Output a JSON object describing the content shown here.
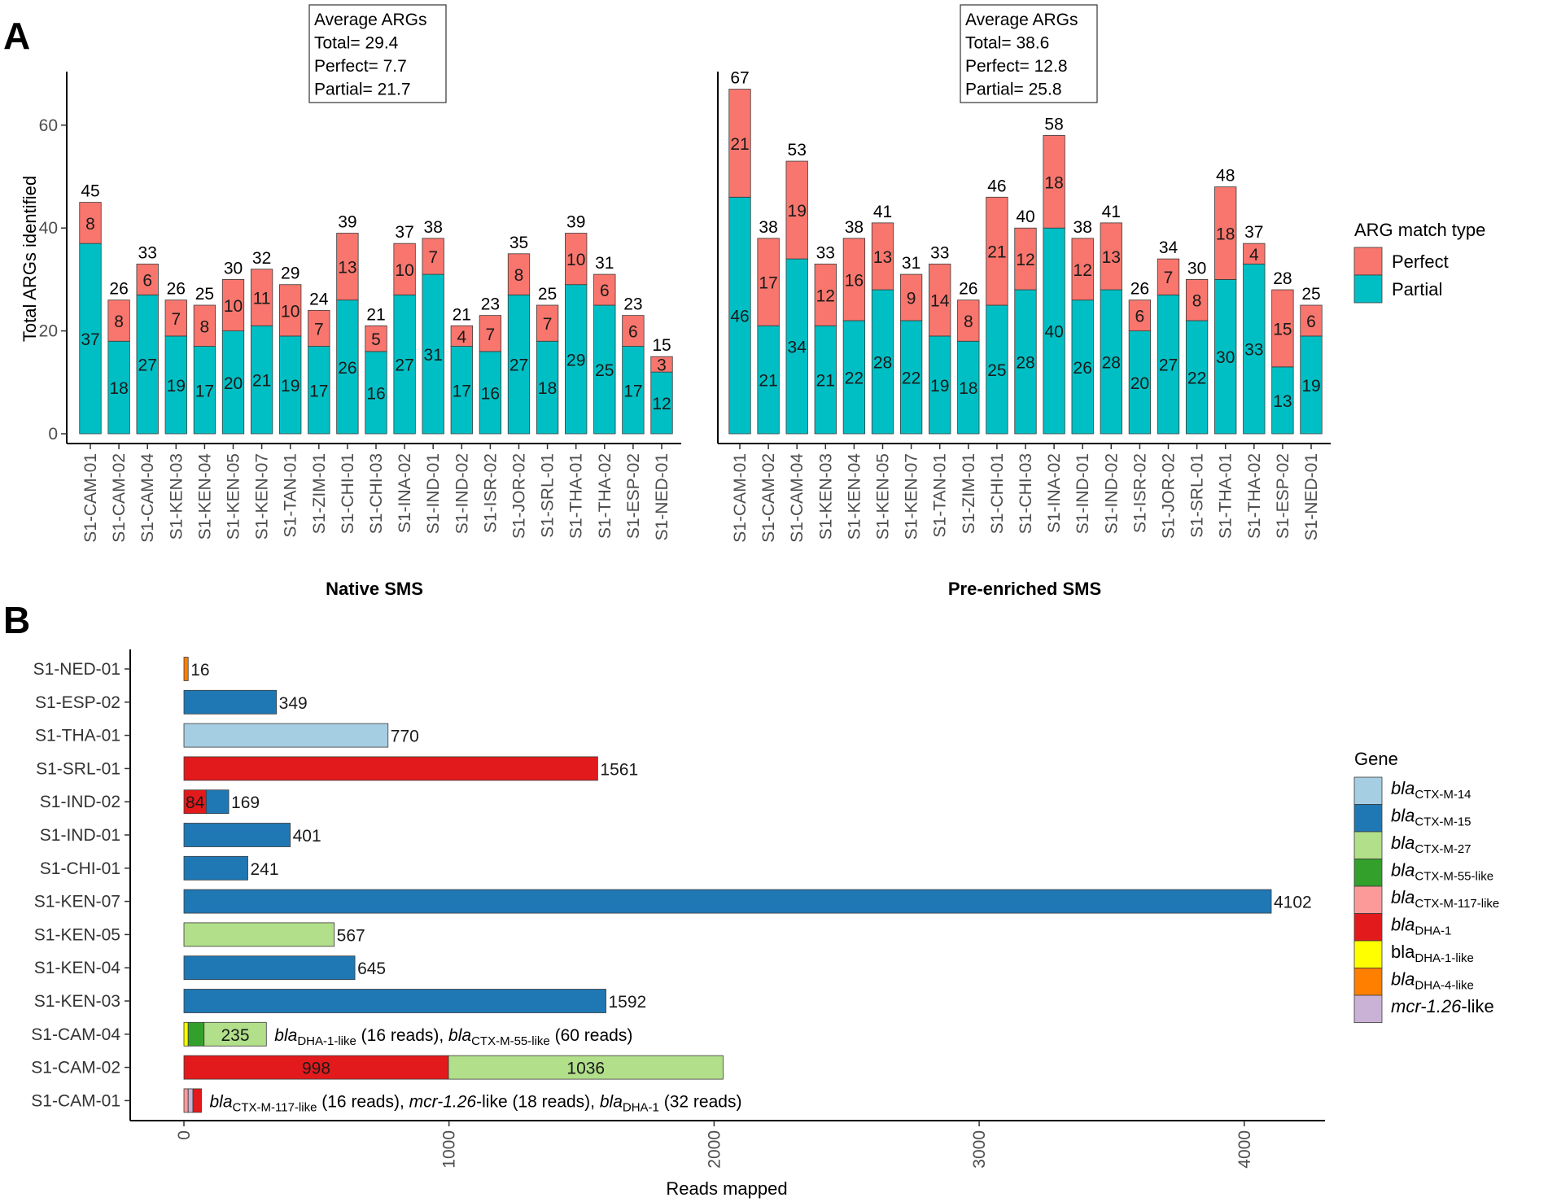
{
  "figure": {
    "panel_a_letter": "A",
    "panel_b_letter": "B"
  },
  "colors": {
    "perfect": "#F8766D",
    "partial": "#00BFC4",
    "ctx_m_14": "#A6CEE3",
    "ctx_m_15": "#1F78B4",
    "ctx_m_27": "#B2DF8A",
    "ctx_m_55_like": "#33A02C",
    "ctx_m_117_like": "#FB9A99",
    "dha_1": "#E31A1C",
    "dha_1_like": "#FFFF00",
    "dha_4_like": "#FF7F00",
    "mcr_1_26_like": "#CAB2D6"
  },
  "chart_data": [
    {
      "type": "bar",
      "stacked": true,
      "ylabel": "Total ARGs identified",
      "ylim": [
        0,
        70
      ],
      "yticks": [
        0,
        20,
        40,
        60
      ],
      "legend": {
        "title": "ARG match type",
        "entries": [
          {
            "name": "Perfect",
            "color": "#F8766D"
          },
          {
            "name": "Partial",
            "color": "#00BFC4"
          }
        ],
        "placement": "right"
      },
      "facets": [
        {
          "title": "Native SMS",
          "summary": [
            "Average ARGs",
            "Total= 29.4",
            "Perfect= 7.7",
            "Partial= 21.7"
          ],
          "categories": [
            "S1-CAM-01",
            "S1-CAM-02",
            "S1-CAM-04",
            "S1-KEN-03",
            "S1-KEN-04",
            "S1-KEN-05",
            "S1-KEN-07",
            "S1-TAN-01",
            "S1-ZIM-01",
            "S1-CHI-01",
            "S1-CHI-03",
            "S1-INA-02",
            "S1-IND-01",
            "S1-IND-02",
            "S1-ISR-02",
            "S1-JOR-02",
            "S1-SRL-01",
            "S1-THA-01",
            "S1-THA-02",
            "S1-ESP-02",
            "S1-NED-01"
          ],
          "series": [
            {
              "name": "Partial",
              "values": [
                37,
                18,
                27,
                19,
                17,
                20,
                21,
                19,
                17,
                26,
                16,
                27,
                31,
                17,
                16,
                27,
                18,
                29,
                25,
                17,
                12
              ]
            },
            {
              "name": "Perfect",
              "values": [
                8,
                8,
                6,
                7,
                8,
                10,
                11,
                10,
                7,
                13,
                5,
                10,
                7,
                4,
                7,
                8,
                7,
                10,
                6,
                6,
                3
              ]
            }
          ],
          "totals": [
            45,
            26,
            33,
            26,
            25,
            30,
            32,
            29,
            24,
            39,
            21,
            37,
            38,
            21,
            23,
            35,
            25,
            39,
            31,
            23,
            15
          ]
        },
        {
          "title": "Pre-enriched SMS",
          "summary": [
            "Average ARGs",
            "Total= 38.6",
            "Perfect= 12.8",
            "Partial= 25.8"
          ],
          "categories": [
            "S1-CAM-01",
            "S1-CAM-02",
            "S1-CAM-04",
            "S1-KEN-03",
            "S1-KEN-04",
            "S1-KEN-05",
            "S1-KEN-07",
            "S1-TAN-01",
            "S1-ZIM-01",
            "S1-CHI-01",
            "S1-CHI-03",
            "S1-INA-02",
            "S1-IND-01",
            "S1-IND-02",
            "S1-ISR-02",
            "S1-JOR-02",
            "S1-SRL-01",
            "S1-THA-01",
            "S1-THA-02",
            "S1-ESP-02",
            "S1-NED-01"
          ],
          "series": [
            {
              "name": "Partial",
              "values": [
                46,
                21,
                34,
                21,
                22,
                28,
                22,
                19,
                18,
                25,
                28,
                40,
                26,
                28,
                20,
                27,
                22,
                30,
                33,
                13,
                19
              ]
            },
            {
              "name": "Perfect",
              "values": [
                21,
                17,
                19,
                12,
                16,
                13,
                9,
                14,
                8,
                21,
                12,
                18,
                12,
                13,
                6,
                7,
                8,
                18,
                4,
                15,
                6
              ]
            }
          ],
          "totals": [
            67,
            38,
            53,
            33,
            38,
            41,
            31,
            33,
            26,
            46,
            40,
            58,
            38,
            41,
            26,
            34,
            30,
            48,
            37,
            28,
            25
          ]
        }
      ]
    },
    {
      "type": "bar",
      "orientation": "horizontal",
      "stacked": true,
      "xlabel": "Reads mapped",
      "xlim": [
        -200,
        4300
      ],
      "xticks": [
        0,
        1000,
        2000,
        3000,
        4000
      ],
      "legend": {
        "title": "Gene",
        "placement": "right",
        "entries": [
          {
            "key": "ctx_m_14",
            "prefix": "bla",
            "sub": "CTX-M-14",
            "suffix": "",
            "prefix_italic": true
          },
          {
            "key": "ctx_m_15",
            "prefix": "bla",
            "sub": "CTX-M-15",
            "suffix": "",
            "prefix_italic": true
          },
          {
            "key": "ctx_m_27",
            "prefix": "bla",
            "sub": "CTX-M-27",
            "suffix": "",
            "prefix_italic": true
          },
          {
            "key": "ctx_m_55_like",
            "prefix": "bla",
            "sub": "CTX-M-55-like",
            "suffix": "",
            "prefix_italic": true
          },
          {
            "key": "ctx_m_117_like",
            "prefix": "bla",
            "sub": "CTX-M-117-like",
            "suffix": "",
            "prefix_italic": true
          },
          {
            "key": "dha_1",
            "prefix": "bla",
            "sub": "DHA-1",
            "suffix": "",
            "prefix_italic": true
          },
          {
            "key": "dha_1_like",
            "prefix": "bla",
            "sub": "DHA-1-like",
            "suffix": "",
            "prefix_italic": false
          },
          {
            "key": "dha_4_like",
            "prefix": "bla",
            "sub": "DHA-4-like",
            "suffix": "",
            "prefix_italic": true
          },
          {
            "key": "mcr_1_26_like",
            "prefix": "mcr-1.26",
            "sub": "",
            "suffix": "-like",
            "prefix_italic": true
          }
        ]
      },
      "rows": [
        {
          "sample": "S1-CAM-01",
          "segments": [
            {
              "gene": "ctx_m_117_like",
              "value": 16
            },
            {
              "gene": "mcr_1_26_like",
              "value": 18
            },
            {
              "gene": "dha_1",
              "value": 32
            }
          ],
          "segment_labels": [
            "",
            "",
            ""
          ],
          "end_label": "",
          "note": [
            {
              "t": "bla",
              "i": true
            },
            {
              "t": "CTX-M-117-like",
              "s": true
            },
            {
              "t": " (16 reads), "
            },
            {
              "t": "mcr-1.26",
              "i": true
            },
            {
              "t": "-like (18 reads), "
            },
            {
              "t": "bla",
              "i": true
            },
            {
              "t": "DHA-1",
              "s": true
            },
            {
              "t": " (32 reads)"
            }
          ]
        },
        {
          "sample": "S1-CAM-02",
          "segments": [
            {
              "gene": "dha_1",
              "value": 998
            },
            {
              "gene": "ctx_m_27",
              "value": 1036
            }
          ],
          "segment_labels": [
            "998",
            "1036"
          ],
          "end_label": ""
        },
        {
          "sample": "S1-CAM-04",
          "segments": [
            {
              "gene": "dha_1_like",
              "value": 16
            },
            {
              "gene": "ctx_m_55_like",
              "value": 60
            },
            {
              "gene": "ctx_m_27",
              "value": 235
            }
          ],
          "segment_labels": [
            "",
            "",
            "235"
          ],
          "end_label": "",
          "note": [
            {
              "t": "bla",
              "i": true
            },
            {
              "t": "DHA-1-like",
              "s": true
            },
            {
              "t": " (16 reads), "
            },
            {
              "t": "bla",
              "i": true
            },
            {
              "t": "CTX-M-55-like",
              "s": true
            },
            {
              "t": " (60 reads)"
            }
          ]
        },
        {
          "sample": "S1-KEN-03",
          "segments": [
            {
              "gene": "ctx_m_15",
              "value": 1592
            }
          ],
          "segment_labels": [
            ""
          ],
          "end_label": "1592"
        },
        {
          "sample": "S1-KEN-04",
          "segments": [
            {
              "gene": "ctx_m_15",
              "value": 645
            }
          ],
          "segment_labels": [
            ""
          ],
          "end_label": "645"
        },
        {
          "sample": "S1-KEN-05",
          "segments": [
            {
              "gene": "ctx_m_27",
              "value": 567
            }
          ],
          "segment_labels": [
            ""
          ],
          "end_label": "567"
        },
        {
          "sample": "S1-KEN-07",
          "segments": [
            {
              "gene": "ctx_m_15",
              "value": 4102
            }
          ],
          "segment_labels": [
            ""
          ],
          "end_label": "4102"
        },
        {
          "sample": "S1-CHI-01",
          "segments": [
            {
              "gene": "ctx_m_15",
              "value": 241
            }
          ],
          "segment_labels": [
            ""
          ],
          "end_label": "241"
        },
        {
          "sample": "S1-IND-01",
          "segments": [
            {
              "gene": "ctx_m_15",
              "value": 401
            }
          ],
          "segment_labels": [
            ""
          ],
          "end_label": "401"
        },
        {
          "sample": "S1-IND-02",
          "segments": [
            {
              "gene": "dha_1",
              "value": 84
            },
            {
              "gene": "ctx_m_15",
              "value": 85
            }
          ],
          "segment_labels": [
            "84",
            ""
          ],
          "end_label": "169"
        },
        {
          "sample": "S1-SRL-01",
          "segments": [
            {
              "gene": "dha_1",
              "value": 1561
            }
          ],
          "segment_labels": [
            ""
          ],
          "end_label": "1561"
        },
        {
          "sample": "S1-THA-01",
          "segments": [
            {
              "gene": "ctx_m_14",
              "value": 770
            }
          ],
          "segment_labels": [
            ""
          ],
          "end_label": "770"
        },
        {
          "sample": "S1-ESP-02",
          "segments": [
            {
              "gene": "ctx_m_15",
              "value": 349
            }
          ],
          "segment_labels": [
            ""
          ],
          "end_label": "349"
        },
        {
          "sample": "S1-NED-01",
          "segments": [
            {
              "gene": "dha_4_like",
              "value": 16
            }
          ],
          "segment_labels": [
            ""
          ],
          "end_label": "16"
        }
      ]
    }
  ]
}
